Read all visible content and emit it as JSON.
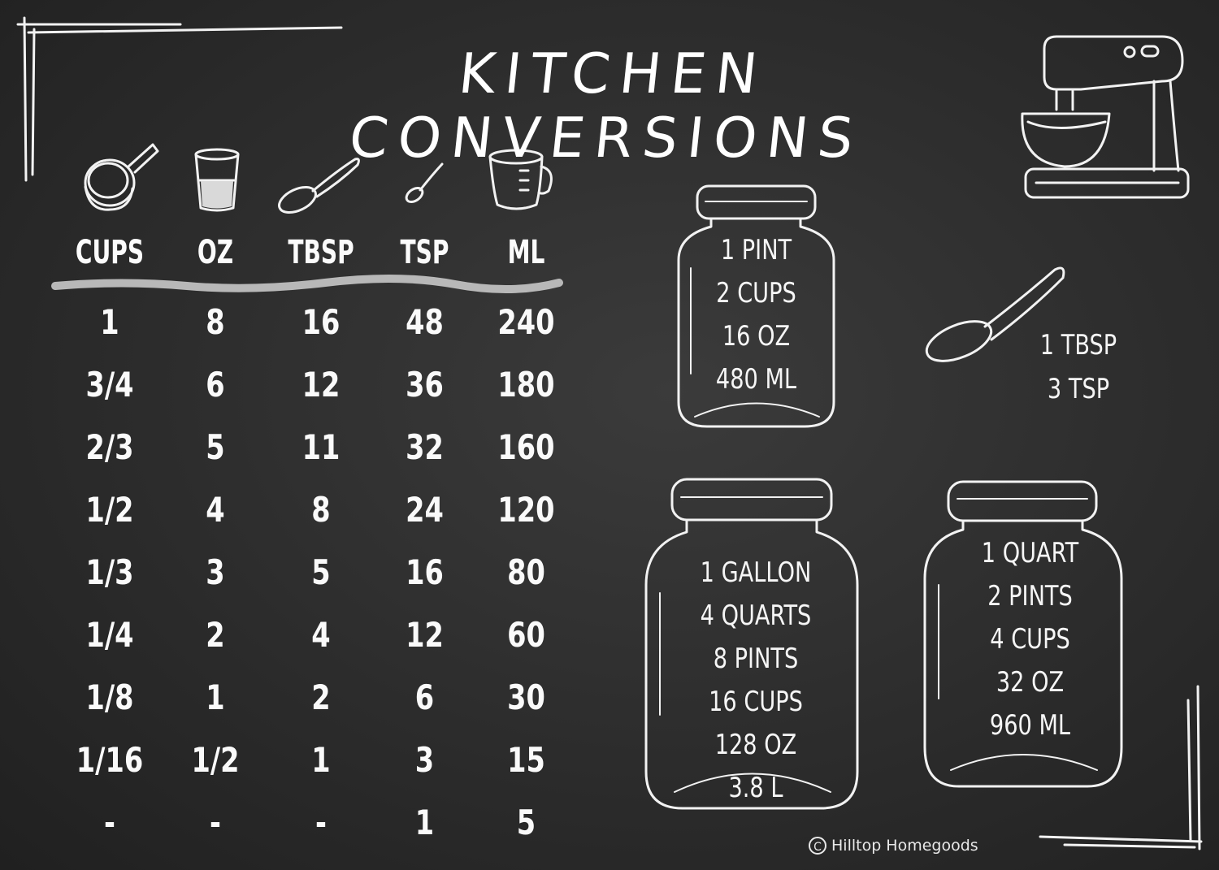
{
  "title": "KITCHEN CONVERSIONS",
  "table": {
    "headers": [
      {
        "label": "CUPS",
        "icon": "measuring-cup-icon"
      },
      {
        "label": "OZ",
        "icon": "glass-icon"
      },
      {
        "label": "TBSP",
        "icon": "tablespoon-icon"
      },
      {
        "label": "TSP",
        "icon": "teaspoon-icon"
      },
      {
        "label": "ML",
        "icon": "measuring-jug-icon"
      }
    ],
    "rows": [
      [
        "1",
        "8",
        "16",
        "48",
        "240"
      ],
      [
        "3/4",
        "6",
        "12",
        "36",
        "180"
      ],
      [
        "2/3",
        "5",
        "11",
        "32",
        "160"
      ],
      [
        "1/2",
        "4",
        "8",
        "24",
        "120"
      ],
      [
        "1/3",
        "3",
        "5",
        "16",
        "80"
      ],
      [
        "1/4",
        "2",
        "4",
        "12",
        "60"
      ],
      [
        "1/8",
        "1",
        "2",
        "6",
        "30"
      ],
      [
        "1/16",
        "1/2",
        "1",
        "3",
        "15"
      ],
      [
        "-",
        "-",
        "-",
        "1",
        "5"
      ]
    ]
  },
  "jars": {
    "pint": [
      "1 PINT",
      "2 CUPS",
      "16 OZ",
      "480 ML"
    ],
    "gallon": [
      "1 GALLON",
      "4 QUARTS",
      "8 PINTS",
      "16 CUPS",
      "128 OZ",
      "3.8 L"
    ],
    "quart": [
      "1 QUART",
      "2 PINTS",
      "4 CUPS",
      "32 OZ",
      "960 ML"
    ]
  },
  "spoon": [
    "1 TBSP",
    "3 TSP"
  ],
  "copyright": {
    "symbol": "C",
    "text": "Hilltop Homegoods"
  },
  "colors": {
    "chalk": "#f4f4f4",
    "board": "#2c2c2c",
    "underline": "#b8b8b8"
  }
}
